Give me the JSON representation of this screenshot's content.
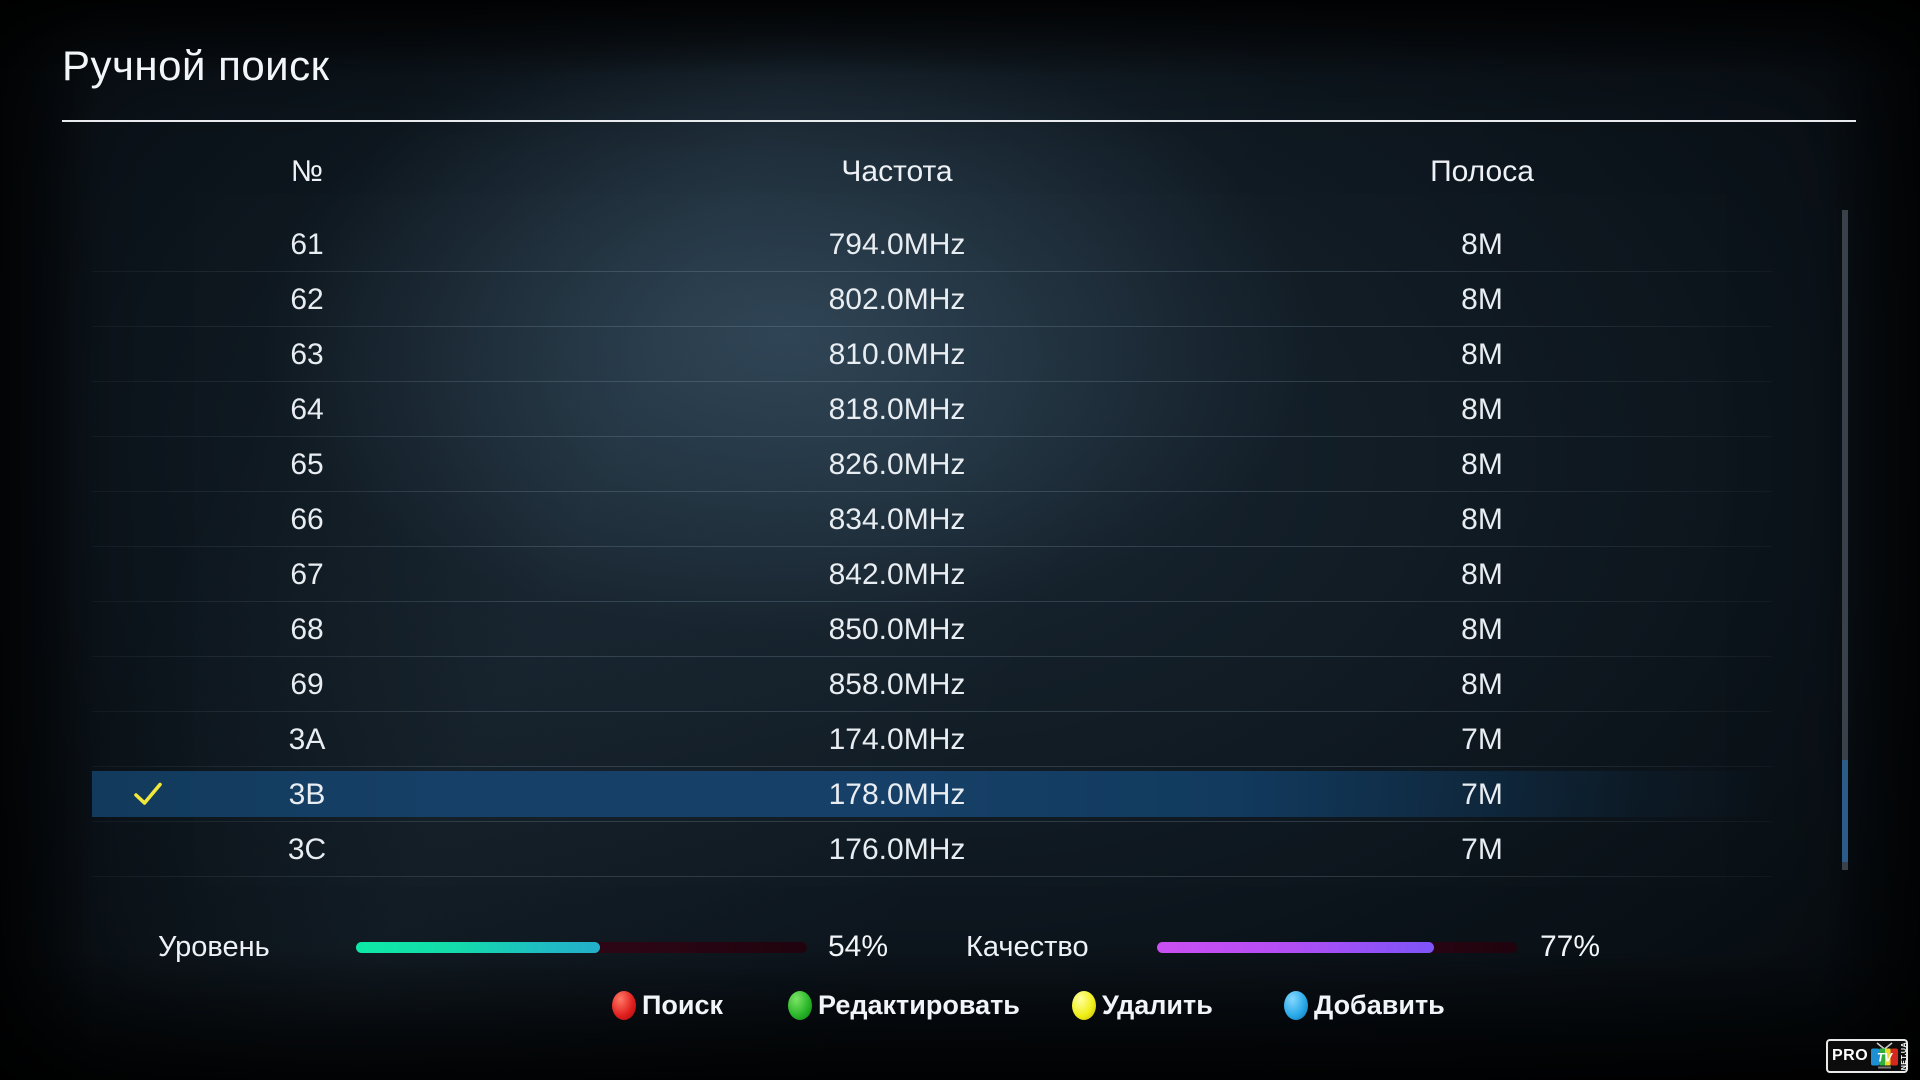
{
  "title": "Ручной поиск",
  "table": {
    "columns": [
      "№",
      "Частота",
      "Полоса"
    ],
    "rows": [
      {
        "num": "61",
        "freq": "794.0MHz",
        "band": "8M",
        "selected": false
      },
      {
        "num": "62",
        "freq": "802.0MHz",
        "band": "8M",
        "selected": false
      },
      {
        "num": "63",
        "freq": "810.0MHz",
        "band": "8M",
        "selected": false
      },
      {
        "num": "64",
        "freq": "818.0MHz",
        "band": "8M",
        "selected": false
      },
      {
        "num": "65",
        "freq": "826.0MHz",
        "band": "8M",
        "selected": false
      },
      {
        "num": "66",
        "freq": "834.0MHz",
        "band": "8M",
        "selected": false
      },
      {
        "num": "67",
        "freq": "842.0MHz",
        "band": "8M",
        "selected": false
      },
      {
        "num": "68",
        "freq": "850.0MHz",
        "band": "8M",
        "selected": false
      },
      {
        "num": "69",
        "freq": "858.0MHz",
        "band": "8M",
        "selected": false
      },
      {
        "num": "3A",
        "freq": "174.0MHz",
        "band": "7M",
        "selected": false
      },
      {
        "num": "3B",
        "freq": "178.0MHz",
        "band": "7M",
        "selected": true
      },
      {
        "num": "3C",
        "freq": "176.0MHz",
        "band": "7M",
        "selected": false
      }
    ]
  },
  "signal": {
    "level_label": "Уровень",
    "level_value": 54,
    "level_text": "54%",
    "quality_label": "Качество",
    "quality_value": 77,
    "quality_text": "77%"
  },
  "key_buttons": [
    {
      "color_name": "red",
      "color": "#e01e1e",
      "label": "Поиск"
    },
    {
      "color_name": "green",
      "color": "#28b428",
      "label": "Редактировать"
    },
    {
      "color_name": "yellow",
      "color": "#f0ee18",
      "label": "Удалить"
    },
    {
      "color_name": "blue",
      "color": "#28a8e8",
      "label": "Добавить"
    }
  ],
  "logo": {
    "pro": "PRO",
    "tv": "TV",
    "net": "NET.UA"
  },
  "colors": {
    "selected_row": "#174068",
    "checkmark": "#f2e83a",
    "level_bar_start": "#0ee9a6",
    "level_bar_end": "#23b0c9",
    "quality_bar_start": "#cb4ff2",
    "quality_bar_end": "#7e55f8",
    "bar_track": "#2e0614",
    "scrollbar_thumb": "#2b5b88"
  }
}
